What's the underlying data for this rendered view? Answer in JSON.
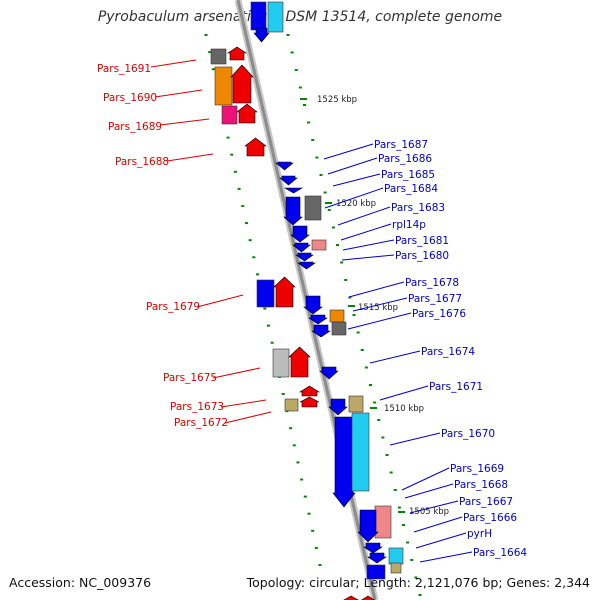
{
  "title": "Pyrobaculum arsenaticum DSM 13514, complete genome",
  "footer": {
    "accession": "Accession: NC_009376",
    "summary": "Topology: circular; Length: 2,121,076 bp; Genes: 2,344"
  },
  "colors": {
    "left_labels": "#dd0000",
    "right_labels": "#0000cc",
    "backbone": "#8c8c8c",
    "tick": "#008800"
  },
  "kbp_ticks": [
    "1525 kbp",
    "1520 kbp",
    "1515 kbp",
    "1510 kbp",
    "1505 kbp"
  ],
  "left_genes": [
    "Pars_1691",
    "Pars_1690",
    "Pars_1689",
    "Pars_1688",
    "Pars_1679",
    "Pars_1675",
    "Pars_1673",
    "Pars_1672"
  ],
  "right_genes": [
    "Pars_1687",
    "Pars_1686",
    "Pars_1685",
    "Pars_1684",
    "Pars_1683",
    "rpl14p",
    "Pars_1681",
    "Pars_1680",
    "Pars_1678",
    "Pars_1677",
    "Pars_1676",
    "Pars_1674",
    "Pars_1671",
    "Pars_1670",
    "Pars_1669",
    "Pars_1668",
    "Pars_1667",
    "Pars_1666",
    "pyrH",
    "Pars_1664"
  ]
}
